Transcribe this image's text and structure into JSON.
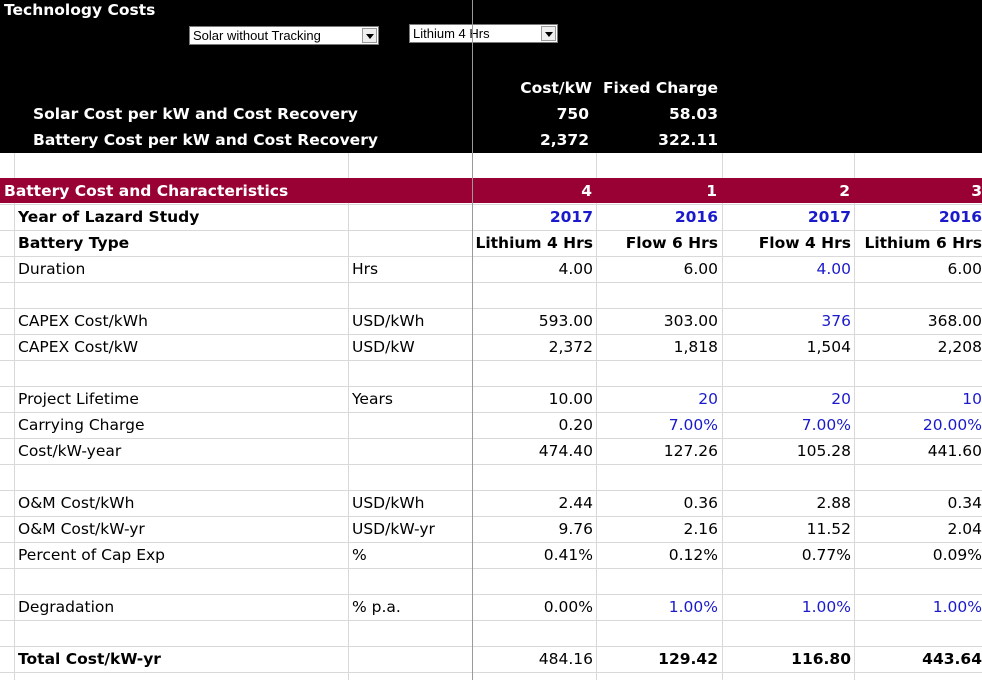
{
  "header": {
    "title": "Technology Costs",
    "dropdown1": "Solar without Tracking",
    "dropdown2": "Lithium 4 Hrs",
    "col_cost": "Cost/kW",
    "col_fixed": "Fixed Charge",
    "solar_label": "Solar Cost per kW and Cost Recovery",
    "solar_cost": "750",
    "solar_fixed": "58.03",
    "battery_label": "Battery Cost per kW and Cost Recovery",
    "battery_cost": "2,372",
    "battery_fixed": "322.11"
  },
  "section": {
    "title": "Battery Cost and Characteristics",
    "cols": [
      "4",
      "1",
      "2",
      "3"
    ]
  },
  "rows": [
    {
      "label": "Year of Lazard Study",
      "unit": "",
      "vals": [
        "2017",
        "2016",
        "2017",
        "2016"
      ]
    },
    {
      "label": "Battery Type",
      "unit": "",
      "vals": [
        "Lithium 4 Hrs",
        "Flow 6 Hrs",
        "Flow 4 Hrs",
        "Lithium 6 Hrs"
      ]
    },
    {
      "label": "Duration",
      "unit": "Hrs",
      "vals": [
        "4.00",
        "6.00",
        "4.00",
        "6.00"
      ]
    },
    {
      "label": "CAPEX Cost/kWh",
      "unit": "USD/kWh",
      "vals": [
        "593.00",
        "303.00",
        "376",
        "368.00"
      ]
    },
    {
      "label": "CAPEX Cost/kW",
      "unit": "USD/kW",
      "vals": [
        "2,372",
        "1,818",
        "1,504",
        "2,208"
      ]
    },
    {
      "label": "Project Lifetime",
      "unit": "Years",
      "vals": [
        "10.00",
        "20",
        "20",
        "10"
      ]
    },
    {
      "label": "Carrying Charge",
      "unit": "",
      "vals": [
        "0.20",
        "7.00%",
        "7.00%",
        "20.00%"
      ]
    },
    {
      "label": "Cost/kW-year",
      "unit": "",
      "vals": [
        "474.40",
        "127.26",
        "105.28",
        "441.60"
      ]
    },
    {
      "label": "O&M Cost/kWh",
      "unit": "USD/kWh",
      "vals": [
        "2.44",
        "0.36",
        "2.88",
        "0.34"
      ]
    },
    {
      "label": "O&M Cost/kW-yr",
      "unit": "USD/kW-yr",
      "vals": [
        "9.76",
        "2.16",
        "11.52",
        "2.04"
      ]
    },
    {
      "label": "Percent of Cap Exp",
      "unit": "%",
      "vals": [
        "0.41%",
        "0.12%",
        "0.77%",
        "0.09%"
      ]
    },
    {
      "label": "Degradation",
      "unit": "% p.a.",
      "vals": [
        "0.00%",
        "1.00%",
        "1.00%",
        "1.00%"
      ]
    },
    {
      "label": "Total Cost/kW-yr",
      "unit": "",
      "vals": [
        "484.16",
        "129.42",
        "116.80",
        "443.64"
      ]
    }
  ],
  "colors": {
    "header_bg": "#000000",
    "section_bg": "#990033",
    "input_blue": "#1a1acc"
  }
}
